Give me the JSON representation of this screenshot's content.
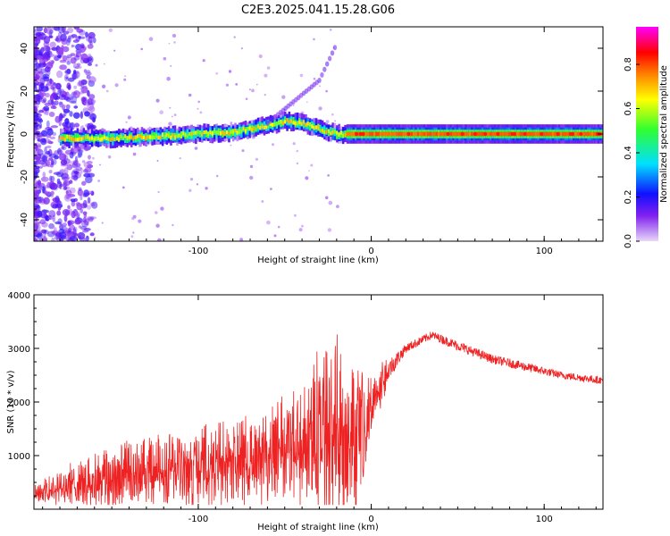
{
  "title": "C2E3.2025.041.15.28.G06",
  "chart_data": [
    {
      "type": "heatmap",
      "xlabel": "Height of straight line (km)",
      "ylabel": "Frequency (Hz)",
      "xlim": [
        -195,
        134
      ],
      "ylim": [
        -50,
        50
      ],
      "xticks": [
        -100,
        0,
        100
      ],
      "yticks": [
        -40,
        -20,
        0,
        20,
        40
      ],
      "colorbar": {
        "label": "Normalized spectral amplitude",
        "range": [
          0,
          0.97
        ],
        "ticks": [
          0.0,
          0.2,
          0.4,
          0.6,
          0.8
        ],
        "tick_labels": [
          "0.0",
          "0.2",
          "0.4",
          "0.6",
          "0.8"
        ],
        "colormap": [
          "#e8d8f8",
          "#8020f0",
          "#1010ff",
          "#00e0ff",
          "#30ff30",
          "#ffff00",
          "#ff8000",
          "#ff0000",
          "#ff00ff"
        ]
      },
      "ridge": {
        "x": [
          -180,
          -150,
          -120,
          -100,
          -80,
          -60,
          -50,
          -40,
          -30,
          -20,
          -10,
          0,
          50,
          100,
          134
        ],
        "y": [
          -2,
          -2,
          -1,
          0,
          1,
          4,
          6,
          5,
          2,
          0,
          0,
          0,
          0,
          0,
          0
        ]
      },
      "secondary_branch": {
        "x": [
          -60,
          -45,
          -30,
          -20
        ],
        "y": [
          5,
          15,
          25,
          42
        ]
      }
    },
    {
      "type": "line",
      "xlabel": "Height of straight line (km)",
      "ylabel": "SNR (10 * v/v)",
      "xlim": [
        -195,
        134
      ],
      "ylim": [
        0,
        4000
      ],
      "xticks": [
        -100,
        0,
        100
      ],
      "yticks": [
        1000,
        2000,
        3000,
        4000
      ],
      "series": [
        {
          "color": "#ee2222",
          "envelope_x": [
            -195,
            -180,
            -160,
            -140,
            -120,
            -100,
            -80,
            -60,
            -40,
            -25,
            -15,
            -8,
            0,
            10,
            20,
            35,
            50,
            70,
            90,
            110,
            134
          ],
          "envelope_y": [
            300,
            400,
            550,
            650,
            700,
            800,
            900,
            1000,
            1200,
            1500,
            1400,
            1200,
            2000,
            2600,
            3000,
            3250,
            3050,
            2800,
            2650,
            2500,
            2400
          ],
          "spread": [
            150,
            300,
            500,
            600,
            650,
            700,
            750,
            900,
            1100,
            1800,
            1500,
            1600,
            500,
            300,
            120,
            110,
            130,
            120,
            120,
            100,
            100
          ]
        }
      ]
    }
  ]
}
